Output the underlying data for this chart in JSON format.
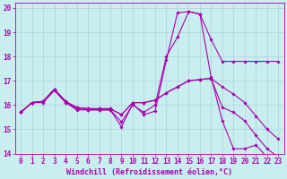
{
  "xlabel": "Windchill (Refroidissement éolien,°C)",
  "background_color": "#c8eef0",
  "grid_color": "#b0d8da",
  "line_color": "#aa00aa",
  "xlim": [
    -0.5,
    23.5
  ],
  "ylim": [
    14,
    20.2
  ],
  "yticks": [
    14,
    15,
    16,
    17,
    18,
    19,
    20
  ],
  "xticks": [
    0,
    1,
    2,
    3,
    4,
    5,
    6,
    7,
    8,
    9,
    10,
    11,
    12,
    13,
    14,
    15,
    16,
    17,
    18,
    19,
    20,
    21,
    22,
    23
  ],
  "series": [
    [
      15.7,
      16.1,
      16.1,
      16.6,
      16.1,
      15.8,
      15.8,
      15.8,
      15.8,
      15.3,
      16.0,
      15.7,
      16.0,
      18.0,
      18.8,
      19.85,
      19.75,
      17.15,
      15.35,
      14.2,
      14.2,
      14.35,
      13.85,
      13.85
    ],
    [
      15.7,
      16.1,
      16.15,
      16.65,
      16.15,
      15.9,
      15.85,
      15.85,
      15.85,
      15.6,
      16.1,
      16.1,
      16.2,
      16.5,
      16.75,
      17.0,
      17.05,
      17.1,
      16.75,
      16.45,
      16.1,
      15.55,
      15.0,
      14.6
    ],
    [
      15.7,
      16.1,
      16.15,
      16.65,
      16.15,
      15.9,
      15.85,
      15.85,
      15.85,
      15.6,
      16.1,
      16.1,
      16.2,
      16.5,
      16.75,
      17.0,
      17.05,
      17.1,
      15.9,
      15.7,
      15.35,
      14.75,
      14.2,
      13.85
    ],
    [
      15.7,
      16.1,
      16.15,
      16.65,
      16.15,
      15.85,
      15.8,
      15.8,
      15.8,
      15.1,
      16.05,
      15.6,
      15.75,
      17.85,
      19.8,
      19.85,
      19.75,
      18.7,
      17.8,
      17.8,
      17.8,
      17.8,
      17.8,
      17.8
    ]
  ],
  "tick_fontsize": 5.5,
  "xlabel_fontsize": 6.0
}
